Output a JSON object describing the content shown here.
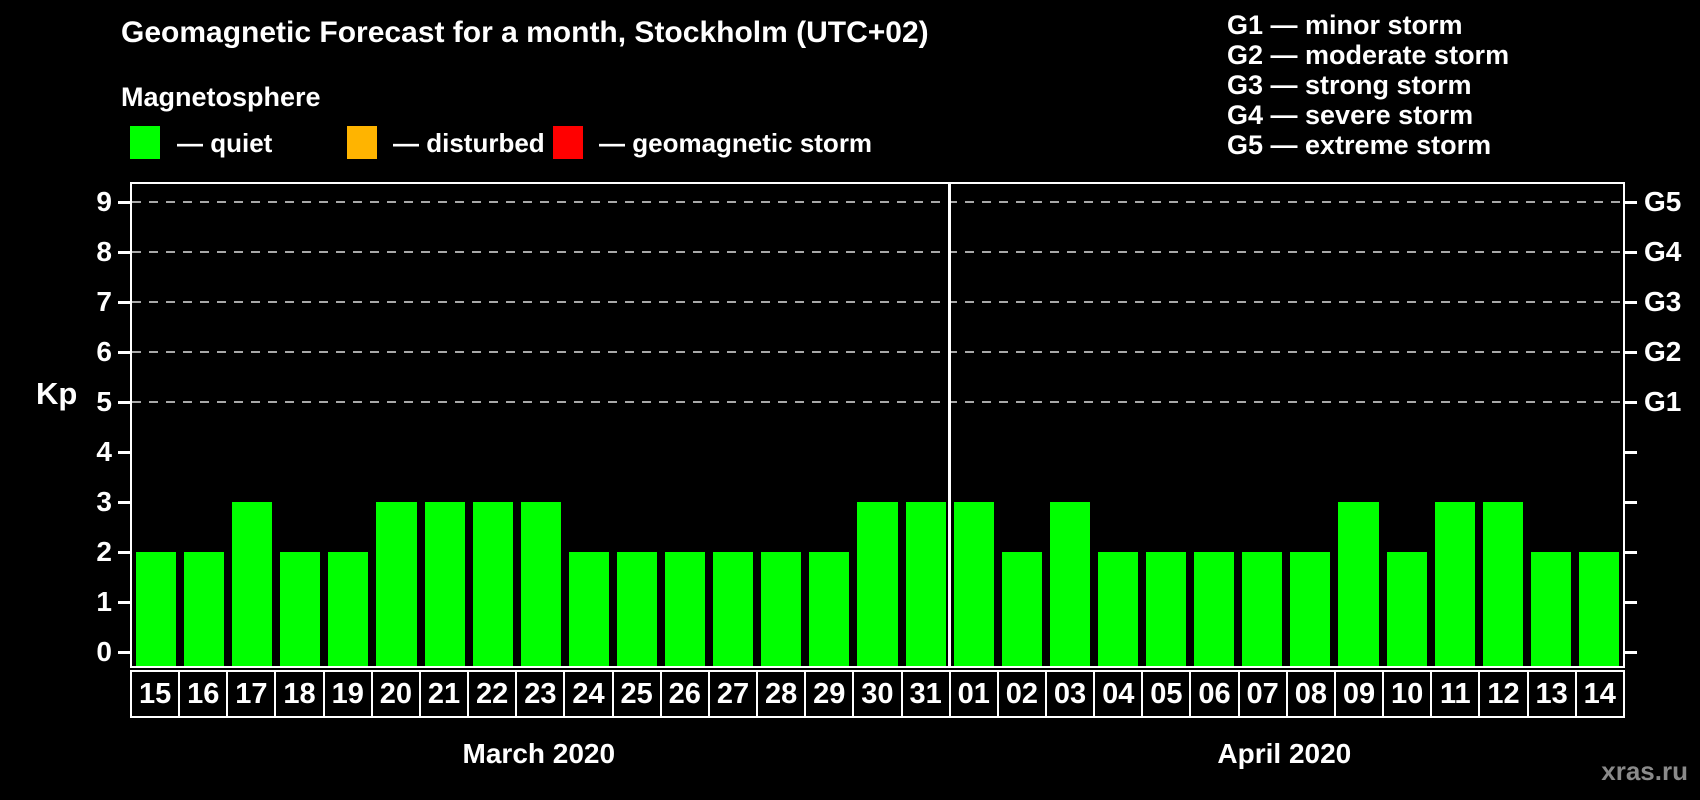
{
  "title": "Geomagnetic Forecast for a month, Stockholm (UTC+02)",
  "subtitle": "Magnetosphere",
  "legend": {
    "items": [
      {
        "name": "quiet",
        "label": "— quiet",
        "color": "#00ff00"
      },
      {
        "name": "disturbed",
        "label": "— disturbed",
        "color": "#ffb400"
      },
      {
        "name": "geomagnetic-storm",
        "label": "— geomagnetic storm",
        "color": "#ff0000"
      }
    ]
  },
  "g_legend": [
    "G1 — minor storm",
    "G2 — moderate storm",
    "G3 — strong storm",
    "G4 — severe storm",
    "G5 — extreme storm"
  ],
  "watermark": "xras.ru",
  "colors": {
    "background": "#000000",
    "bar_quiet": "#00ff00",
    "axis": "#ffffff",
    "gridline": "#a8a8a8",
    "watermark": "#8a8a8a"
  },
  "chart_data": {
    "type": "bar",
    "title": "Geomagnetic Forecast for a month, Stockholm (UTC+02)",
    "xlabel": "",
    "ylabel": "Kp",
    "ylim": [
      0,
      9
    ],
    "yticks": [
      0,
      1,
      2,
      3,
      4,
      5,
      6,
      7,
      8,
      9
    ],
    "grid_levels_kp": [
      5,
      6,
      7,
      8,
      9
    ],
    "grid_style": "dashed",
    "legend_position": "top",
    "right_axis": [
      {
        "label": "G1",
        "kp": 5
      },
      {
        "label": "G2",
        "kp": 6
      },
      {
        "label": "G3",
        "kp": 7
      },
      {
        "label": "G4",
        "kp": 8
      },
      {
        "label": "G5",
        "kp": 9
      }
    ],
    "bar_color": "#00ff00",
    "bar_status": "quiet",
    "months": [
      {
        "label": "March 2020",
        "days": [
          "15",
          "16",
          "17",
          "18",
          "19",
          "20",
          "21",
          "22",
          "23",
          "24",
          "25",
          "26",
          "27",
          "28",
          "29",
          "30",
          "31"
        ],
        "values": [
          2,
          2,
          3,
          2,
          2,
          3,
          3,
          3,
          3,
          2,
          2,
          2,
          2,
          2,
          2,
          3,
          3
        ]
      },
      {
        "label": "April 2020",
        "days": [
          "01",
          "02",
          "03",
          "04",
          "05",
          "06",
          "07",
          "08",
          "09",
          "10",
          "11",
          "12",
          "13",
          "14"
        ],
        "values": [
          3,
          2,
          3,
          2,
          2,
          2,
          2,
          2,
          3,
          2,
          3,
          3,
          2,
          2
        ]
      }
    ]
  }
}
